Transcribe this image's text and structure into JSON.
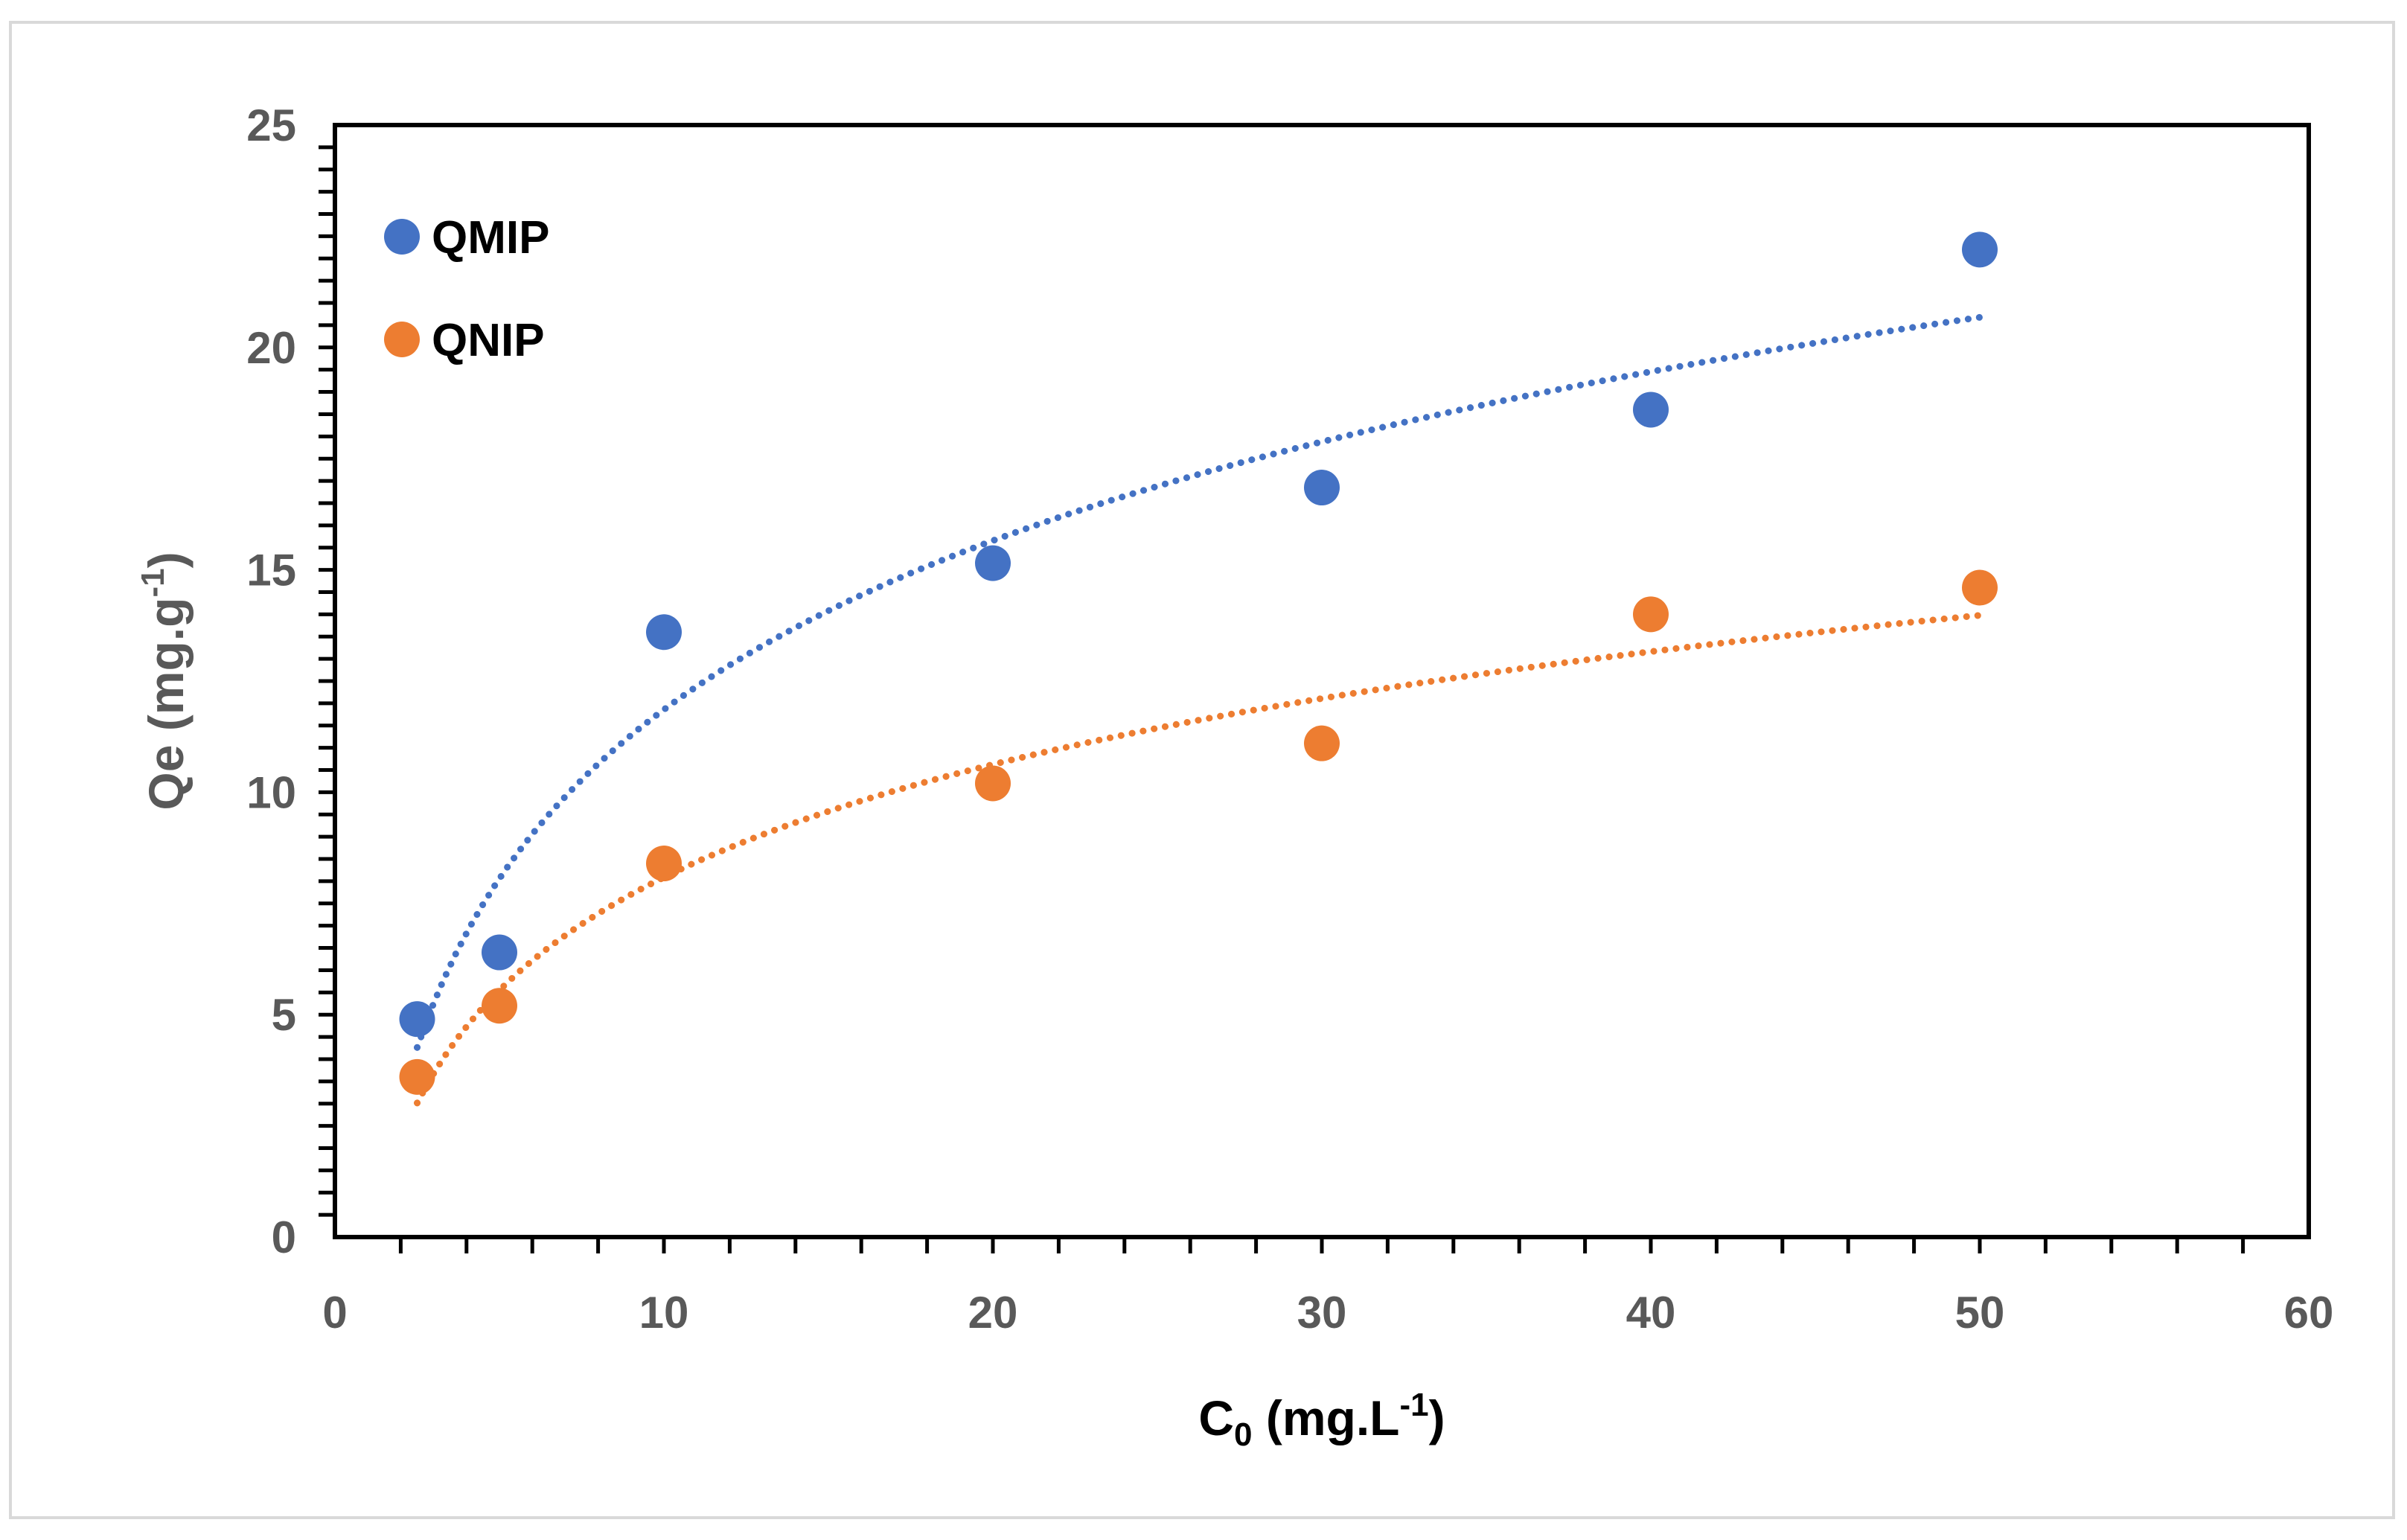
{
  "chart_data": {
    "type": "scatter",
    "title": "",
    "xlabel": {
      "main": "C",
      "sub": "0",
      "after_sub": " (mg.L",
      "sup": "-1",
      "end": ")"
    },
    "ylabel": {
      "main": "Qe (mg.g",
      "sup": "-1",
      "end": ")"
    },
    "xlim": [
      0,
      60
    ],
    "ylim": [
      0,
      25
    ],
    "x_ticks": [
      0,
      10,
      20,
      30,
      40,
      50,
      60
    ],
    "y_ticks": [
      0,
      5,
      10,
      15,
      20,
      25
    ],
    "legend_position": "top-left",
    "series": [
      {
        "name": "QMIP",
        "color": "#4472c4",
        "x": [
          2.5,
          5,
          10,
          20,
          30,
          40,
          50
        ],
        "y": [
          4.9,
          6.4,
          13.6,
          15.15,
          16.85,
          18.6,
          22.2
        ],
        "trendline": {
          "type": "logarithmic",
          "a": 5.48,
          "b": -0.76,
          "x_range": [
            2.5,
            50
          ],
          "style": "dotted"
        }
      },
      {
        "name": "QNIP",
        "color": "#ed7d31",
        "x": [
          2.5,
          5,
          10,
          20,
          30,
          40,
          50
        ],
        "y": [
          3.6,
          5.2,
          8.4,
          10.2,
          11.1,
          14.0,
          14.6
        ],
        "trendline": {
          "type": "logarithmic",
          "a": 3.66,
          "b": -0.34,
          "x_range": [
            2.5,
            50
          ],
          "style": "dotted"
        }
      }
    ]
  }
}
